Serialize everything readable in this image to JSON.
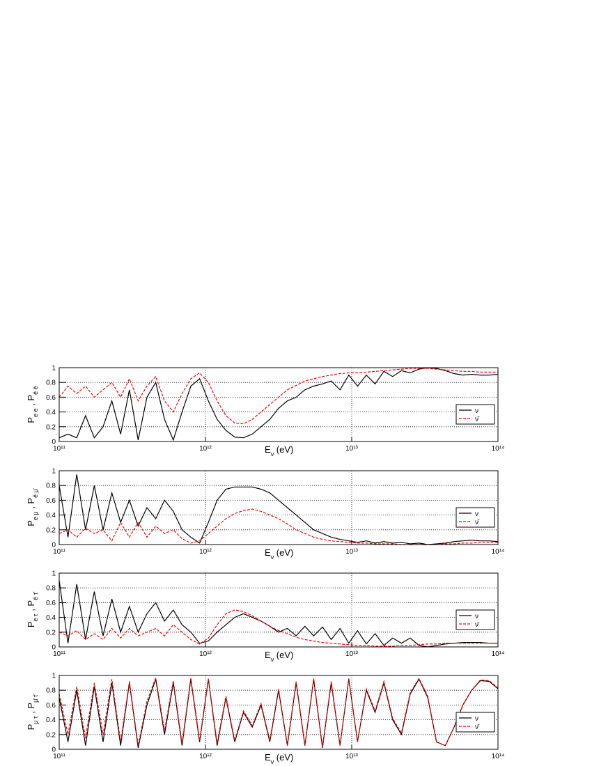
{
  "chart_data": [
    {
      "type": "line",
      "ylabel": [
        {
          "text": "P"
        },
        {
          "text": "e e",
          "sub": true
        },
        {
          "text": " , "
        },
        {
          "text": "P"
        },
        {
          "text": "ē ē",
          "sub": true
        }
      ],
      "xlabel": [
        {
          "text": "E"
        },
        {
          "text": "ν",
          "sub": true
        },
        {
          "text": " (eV)"
        }
      ],
      "xscale": "log",
      "xlim": [
        100000000000.0,
        100000000000000.0
      ],
      "xticks": [
        {
          "value": 100000000000.0,
          "label": "10¹¹"
        },
        {
          "value": 1000000000000.0,
          "label": "10¹²"
        },
        {
          "value": 10000000000000.0,
          "label": "10¹³"
        },
        {
          "value": 100000000000000.0,
          "label": "10¹⁴"
        }
      ],
      "ylim": [
        0,
        1
      ],
      "yticks": [
        0,
        0.2,
        0.4,
        0.6,
        0.8,
        1
      ],
      "grid": true,
      "legend": "right",
      "x": [
        100000000000.0,
        114800000000.0,
        131800000000.0,
        151400000000.0,
        173800000000.0,
        199500000000.0,
        229100000000.0,
        263000000000.0,
        302000000000.0,
        346700000000.0,
        398100000000.0,
        457100000000.0,
        524800000000.0,
        602600000000.0,
        691800000000.0,
        794300000000.0,
        912000000000.0,
        1047000000000.0,
        1202000000000.0,
        1380000000000.0,
        1585000000000.0,
        1820000000000.0,
        2089000000000.0,
        2399000000000.0,
        2754000000000.0,
        3162000000000.0,
        3631000000000.0,
        4169000000000.0,
        4786000000000.0,
        5495000000000.0,
        6310000000000.0,
        7244000000000.0,
        8318000000000.0,
        9550000000000.0,
        10960000000000.0,
        12590000000000.0,
        14450000000000.0,
        16600000000000.0,
        19050000000000.0,
        21880000000000.0,
        25120000000000.0,
        28840000000000.0,
        33110000000000.0,
        38020000000000.0,
        43650000000000.0,
        50120000000000.0,
        57540000000000.0,
        66070000000000.0,
        75860000000000.0,
        87100000000000.0,
        100000000000000.0
      ],
      "series": [
        {
          "name": "ν",
          "color": "#000000",
          "dash": false,
          "values": [
            0.05,
            0.1,
            0.05,
            0.35,
            0.05,
            0.2,
            0.55,
            0.1,
            0.7,
            0.02,
            0.6,
            0.8,
            0.3,
            0.02,
            0.4,
            0.75,
            0.85,
            0.55,
            0.3,
            0.15,
            0.06,
            0.05,
            0.1,
            0.2,
            0.3,
            0.45,
            0.55,
            0.6,
            0.7,
            0.75,
            0.78,
            0.82,
            0.7,
            0.9,
            0.75,
            0.9,
            0.78,
            0.95,
            0.88,
            0.96,
            0.93,
            0.98,
            1.0,
            0.99,
            0.96,
            0.92,
            0.9,
            0.91,
            0.9,
            0.9,
            0.91
          ]
        },
        {
          "name": "ν̄",
          "color": "#ff0000",
          "dash": true,
          "values": [
            0.6,
            0.75,
            0.65,
            0.75,
            0.6,
            0.7,
            0.8,
            0.6,
            0.85,
            0.55,
            0.75,
            0.88,
            0.55,
            0.4,
            0.65,
            0.85,
            0.93,
            0.8,
            0.55,
            0.35,
            0.25,
            0.24,
            0.3,
            0.4,
            0.5,
            0.6,
            0.7,
            0.76,
            0.82,
            0.85,
            0.88,
            0.9,
            0.92,
            0.93,
            0.93,
            0.94,
            0.95,
            0.96,
            0.97,
            0.98,
            0.99,
            0.99,
            0.99,
            0.98,
            0.97,
            0.96,
            0.95,
            0.95,
            0.94,
            0.94,
            0.94
          ]
        }
      ]
    },
    {
      "type": "line",
      "ylabel": [
        {
          "text": "P"
        },
        {
          "text": "e μ",
          "sub": true
        },
        {
          "text": " , "
        },
        {
          "text": "P"
        },
        {
          "text": "ē μ̄",
          "sub": true
        }
      ],
      "xlabel": [
        {
          "text": "E"
        },
        {
          "text": "ν",
          "sub": true
        },
        {
          "text": " (eV)"
        }
      ],
      "xscale": "log",
      "xlim": [
        100000000000.0,
        100000000000000.0
      ],
      "xticks": [
        {
          "value": 100000000000.0,
          "label": "10¹¹"
        },
        {
          "value": 1000000000000.0,
          "label": "10¹²"
        },
        {
          "value": 10000000000000.0,
          "label": "10¹³"
        },
        {
          "value": 100000000000000.0,
          "label": "10¹⁴"
        }
      ],
      "ylim": [
        0,
        1
      ],
      "yticks": [
        0,
        0.2,
        0.4,
        0.6,
        0.8,
        1
      ],
      "grid": true,
      "legend": "right",
      "x": [
        100000000000.0,
        114800000000.0,
        131800000000.0,
        151400000000.0,
        173800000000.0,
        199500000000.0,
        229100000000.0,
        263000000000.0,
        302000000000.0,
        346700000000.0,
        398100000000.0,
        457100000000.0,
        524800000000.0,
        602600000000.0,
        691800000000.0,
        794300000000.0,
        912000000000.0,
        1047000000000.0,
        1202000000000.0,
        1380000000000.0,
        1585000000000.0,
        1820000000000.0,
        2089000000000.0,
        2399000000000.0,
        2754000000000.0,
        3162000000000.0,
        3631000000000.0,
        4169000000000.0,
        4786000000000.0,
        5495000000000.0,
        6310000000000.0,
        7244000000000.0,
        8318000000000.0,
        9550000000000.0,
        10960000000000.0,
        12590000000000.0,
        14450000000000.0,
        16600000000000.0,
        19050000000000.0,
        21880000000000.0,
        25120000000000.0,
        28840000000000.0,
        33110000000000.0,
        38020000000000.0,
        43650000000000.0,
        50120000000000.0,
        57540000000000.0,
        66070000000000.0,
        75860000000000.0,
        87100000000000.0,
        100000000000000.0
      ],
      "series": [
        {
          "name": "ν",
          "color": "#000000",
          "dash": false,
          "values": [
            0.8,
            0.1,
            0.95,
            0.2,
            0.8,
            0.2,
            0.7,
            0.3,
            0.6,
            0.25,
            0.5,
            0.35,
            0.6,
            0.45,
            0.2,
            0.1,
            0.02,
            0.3,
            0.6,
            0.75,
            0.78,
            0.78,
            0.78,
            0.75,
            0.7,
            0.6,
            0.5,
            0.4,
            0.3,
            0.2,
            0.15,
            0.1,
            0.07,
            0.05,
            0.03,
            0.05,
            0.02,
            0.04,
            0.02,
            0.03,
            0.01,
            0.02,
            0.0,
            0.01,
            0.02,
            0.04,
            0.05,
            0.06,
            0.05,
            0.05,
            0.04
          ]
        },
        {
          "name": "ν̄",
          "color": "#ff0000",
          "dash": true,
          "values": [
            0.15,
            0.2,
            0.1,
            0.22,
            0.15,
            0.2,
            0.05,
            0.3,
            0.1,
            0.3,
            0.1,
            0.25,
            0.15,
            0.2,
            0.08,
            0.02,
            0.05,
            0.15,
            0.25,
            0.35,
            0.42,
            0.46,
            0.48,
            0.45,
            0.4,
            0.35,
            0.28,
            0.2,
            0.15,
            0.1,
            0.07,
            0.05,
            0.04,
            0.03,
            0.02,
            0.02,
            0.01,
            0.01,
            0.01,
            0.0,
            0.0,
            0.0,
            0.0,
            0.0,
            0.01,
            0.01,
            0.02,
            0.02,
            0.03,
            0.03,
            0.03
          ]
        }
      ]
    },
    {
      "type": "line",
      "ylabel": [
        {
          "text": "P"
        },
        {
          "text": "e τ",
          "sub": true
        },
        {
          "text": " , "
        },
        {
          "text": "P"
        },
        {
          "text": "ē τ̄",
          "sub": true
        }
      ],
      "xlabel": [
        {
          "text": "E"
        },
        {
          "text": "ν",
          "sub": true
        },
        {
          "text": " (eV)"
        }
      ],
      "xscale": "log",
      "xlim": [
        100000000000.0,
        100000000000000.0
      ],
      "xticks": [
        {
          "value": 100000000000.0,
          "label": "10¹¹"
        },
        {
          "value": 1000000000000.0,
          "label": "10¹²"
        },
        {
          "value": 10000000000000.0,
          "label": "10¹³"
        },
        {
          "value": 100000000000000.0,
          "label": "10¹⁴"
        }
      ],
      "ylim": [
        0,
        1
      ],
      "yticks": [
        0,
        0.2,
        0.4,
        0.6,
        0.8,
        1
      ],
      "grid": true,
      "legend": "right",
      "x": [
        100000000000.0,
        114800000000.0,
        131800000000.0,
        151400000000.0,
        173800000000.0,
        199500000000.0,
        229100000000.0,
        263000000000.0,
        302000000000.0,
        346700000000.0,
        398100000000.0,
        457100000000.0,
        524800000000.0,
        602600000000.0,
        691800000000.0,
        794300000000.0,
        912000000000.0,
        1047000000000.0,
        1202000000000.0,
        1380000000000.0,
        1585000000000.0,
        1820000000000.0,
        2089000000000.0,
        2399000000000.0,
        2754000000000.0,
        3162000000000.0,
        3631000000000.0,
        4169000000000.0,
        4786000000000.0,
        5495000000000.0,
        6310000000000.0,
        7244000000000.0,
        8318000000000.0,
        9550000000000.0,
        10960000000000.0,
        12590000000000.0,
        14450000000000.0,
        16600000000000.0,
        19050000000000.0,
        21880000000000.0,
        25120000000000.0,
        28840000000000.0,
        33110000000000.0,
        38020000000000.0,
        43650000000000.0,
        50120000000000.0,
        57540000000000.0,
        66070000000000.0,
        75860000000000.0,
        87100000000000.0,
        100000000000000.0
      ],
      "series": [
        {
          "name": "ν",
          "color": "#000000",
          "dash": false,
          "values": [
            0.9,
            0.05,
            0.85,
            0.1,
            0.75,
            0.15,
            0.65,
            0.2,
            0.55,
            0.2,
            0.45,
            0.6,
            0.35,
            0.5,
            0.3,
            0.2,
            0.05,
            0.08,
            0.2,
            0.3,
            0.4,
            0.45,
            0.4,
            0.35,
            0.28,
            0.2,
            0.25,
            0.15,
            0.28,
            0.15,
            0.27,
            0.1,
            0.25,
            0.05,
            0.22,
            0.04,
            0.18,
            0.02,
            0.12,
            0.05,
            0.12,
            0.02,
            0.0,
            0.02,
            0.04,
            0.05,
            0.06,
            0.06,
            0.06,
            0.05,
            0.05
          ]
        },
        {
          "name": "ν̄",
          "color": "#ff0000",
          "dash": true,
          "values": [
            0.2,
            0.15,
            0.22,
            0.1,
            0.18,
            0.1,
            0.25,
            0.12,
            0.25,
            0.15,
            0.2,
            0.25,
            0.15,
            0.3,
            0.2,
            0.1,
            0.04,
            0.12,
            0.3,
            0.45,
            0.5,
            0.48,
            0.42,
            0.35,
            0.28,
            0.22,
            0.18,
            0.13,
            0.1,
            0.08,
            0.06,
            0.05,
            0.04,
            0.03,
            0.02,
            0.02,
            0.01,
            0.01,
            0.01,
            0.02,
            0.02,
            0.03,
            0.04,
            0.04,
            0.05,
            0.05,
            0.05,
            0.05,
            0.05,
            0.05,
            0.05
          ]
        }
      ]
    },
    {
      "type": "line",
      "ylabel": [
        {
          "text": "P"
        },
        {
          "text": "μ τ",
          "sub": true
        },
        {
          "text": " , "
        },
        {
          "text": "P"
        },
        {
          "text": "μ̄ τ̄",
          "sub": true
        }
      ],
      "xlabel": [
        {
          "text": "E"
        },
        {
          "text": "ν",
          "sub": true
        },
        {
          "text": " (eV)"
        }
      ],
      "xscale": "log",
      "xlim": [
        100000000000.0,
        100000000000000.0
      ],
      "xticks": [
        {
          "value": 100000000000.0,
          "label": "10¹¹"
        },
        {
          "value": 1000000000000.0,
          "label": "10¹²"
        },
        {
          "value": 10000000000000.0,
          "label": "10¹³"
        },
        {
          "value": 100000000000000.0,
          "label": "10¹⁴"
        }
      ],
      "ylim": [
        0,
        1
      ],
      "yticks": [
        0,
        0.2,
        0.4,
        0.6,
        0.8,
        1
      ],
      "grid": true,
      "legend": "right",
      "x": [
        100000000000.0,
        114800000000.0,
        131800000000.0,
        151400000000.0,
        173800000000.0,
        199500000000.0,
        229100000000.0,
        263000000000.0,
        302000000000.0,
        346700000000.0,
        398100000000.0,
        457100000000.0,
        524800000000.0,
        602600000000.0,
        691800000000.0,
        794300000000.0,
        912000000000.0,
        1047000000000.0,
        1202000000000.0,
        1380000000000.0,
        1585000000000.0,
        1820000000000.0,
        2089000000000.0,
        2399000000000.0,
        2754000000000.0,
        3162000000000.0,
        3631000000000.0,
        4169000000000.0,
        4786000000000.0,
        5495000000000.0,
        6310000000000.0,
        7244000000000.0,
        8318000000000.0,
        9550000000000.0,
        10960000000000.0,
        12590000000000.0,
        14450000000000.0,
        16600000000000.0,
        19050000000000.0,
        21880000000000.0,
        25120000000000.0,
        28840000000000.0,
        33110000000000.0,
        38020000000000.0,
        43650000000000.0,
        50120000000000.0,
        57540000000000.0,
        66070000000000.0,
        75860000000000.0,
        87100000000000.0,
        100000000000000.0
      ],
      "series": [
        {
          "name": "ν",
          "color": "#000000",
          "dash": false,
          "values": [
            0.7,
            0.1,
            0.8,
            0.05,
            0.85,
            0.1,
            0.9,
            0.05,
            0.9,
            0.02,
            0.6,
            0.95,
            0.2,
            0.9,
            0.05,
            0.95,
            0.1,
            0.95,
            0.05,
            0.7,
            0.1,
            0.5,
            0.3,
            0.6,
            0.1,
            0.8,
            0.05,
            0.9,
            0.05,
            0.95,
            0.02,
            0.9,
            0.05,
            0.95,
            0.1,
            0.8,
            0.5,
            0.9,
            0.4,
            0.2,
            0.75,
            0.95,
            0.7,
            0.1,
            0.05,
            0.3,
            0.6,
            0.8,
            0.93,
            0.92,
            0.82
          ]
        },
        {
          "name": "ν̄",
          "color": "#ff0000",
          "dash": true,
          "values": [
            0.75,
            0.2,
            0.85,
            0.15,
            0.9,
            0.2,
            0.95,
            0.1,
            0.92,
            0.05,
            0.65,
            0.97,
            0.25,
            0.93,
            0.08,
            0.97,
            0.12,
            0.96,
            0.08,
            0.72,
            0.12,
            0.52,
            0.32,
            0.62,
            0.12,
            0.82,
            0.06,
            0.92,
            0.06,
            0.96,
            0.03,
            0.92,
            0.05,
            0.96,
            0.1,
            0.82,
            0.52,
            0.92,
            0.42,
            0.22,
            0.77,
            0.96,
            0.72,
            0.1,
            0.05,
            0.3,
            0.6,
            0.8,
            0.94,
            0.93,
            0.83
          ]
        }
      ]
    }
  ]
}
